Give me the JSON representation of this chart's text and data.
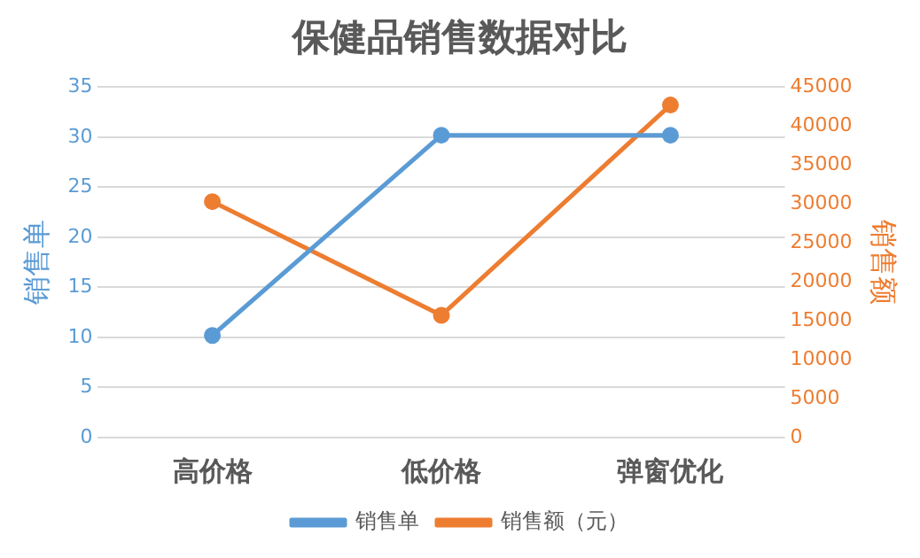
{
  "chart_data": {
    "type": "line",
    "title": "保健品销售数据对比",
    "ylabel": "销售单",
    "y2label": "销售额",
    "categories": [
      "高价格",
      "低价格",
      "弹窗优化"
    ],
    "series": [
      {
        "name": "销售单",
        "color": "#5b9bd5",
        "values": [
          10.2,
          30.2,
          30.2
        ]
      },
      {
        "name": "销售额（元）",
        "color": "#ed7d31",
        "values": [
          30300,
          15700,
          42700
        ],
        "axis": "y2"
      }
    ],
    "ylim": [
      0,
      35
    ],
    "yticks": [
      0,
      5,
      10,
      15,
      20,
      25,
      30,
      35
    ],
    "y2lim": [
      0,
      45000
    ],
    "y2ticks": [
      0,
      5000,
      10000,
      15000,
      20000,
      25000,
      30000,
      35000,
      40000,
      45000
    ],
    "grid": "y",
    "legend": "bottom",
    "marker": "circle",
    "line_style": "solid"
  }
}
